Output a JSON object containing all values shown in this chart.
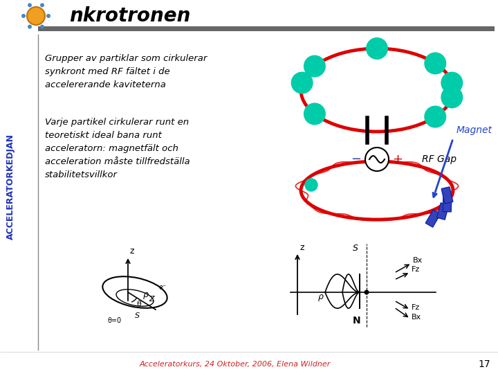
{
  "title": "nkrotronen",
  "sidebar_text": "ACCELERATORKEDJAN",
  "text1_lines": [
    "Grupper av partiklar som cirkulerar",
    "synkront med RF fältet i de",
    "accelererande kaviteterna"
  ],
  "text2_lines": [
    "Varje partikel cirkulerar runt en",
    "teoretiskt ideal bana runt",
    "acceleratorn: magnetfält och",
    "acceleration måste tillfredställa",
    "stabilitetsvillkor"
  ],
  "rf_gap_label": "RF Gap",
  "magnet_label": "Magnet",
  "footer_text": "Acceleratorkurs, 24 Oktober, 2006, Elena Wildner",
  "page_number": "17",
  "teal_color": "#00ccaa",
  "red_color": "#dd0000",
  "blue_magnet_color": "#3344bb",
  "sidebar_color": "#2233bb",
  "magnet_arrow_color": "#2244cc"
}
